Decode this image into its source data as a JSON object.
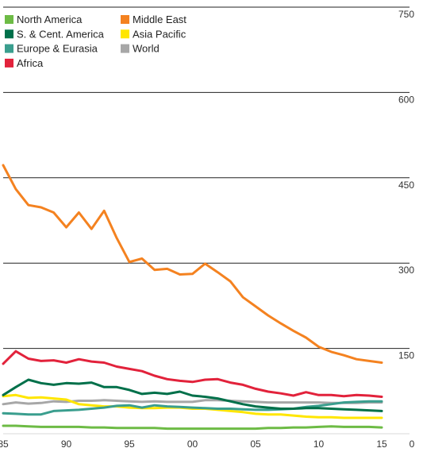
{
  "chart_data": {
    "type": "line",
    "title": "",
    "xlabel": "",
    "ylabel": "",
    "x": [
      1985,
      1986,
      1987,
      1988,
      1989,
      1990,
      1991,
      1992,
      1993,
      1994,
      1995,
      1996,
      1997,
      1998,
      1999,
      2000,
      2001,
      2002,
      2003,
      2004,
      2005,
      2006,
      2007,
      2008,
      2009,
      2010,
      2011,
      2012,
      2013,
      2014,
      2015
    ],
    "xtick_values": [
      1985,
      1990,
      1995,
      2000,
      2005,
      2010,
      2015
    ],
    "xtick_labels": [
      "85",
      "90",
      "95",
      "00",
      "05",
      "10",
      "15"
    ],
    "ytick_values": [
      0,
      150,
      300,
      450,
      600,
      750
    ],
    "ytick_labels": [
      "0",
      "150",
      "300",
      "450",
      "600",
      "750"
    ],
    "ylim": [
      0,
      750
    ],
    "xlim": [
      1985,
      2016
    ],
    "grid": "horizontal",
    "legend_position": "top-left",
    "series": [
      {
        "name": "North America",
        "color": "#6dbb45",
        "values": [
          14,
          14,
          13,
          12,
          12,
          12,
          12,
          11,
          11,
          10,
          10,
          10,
          10,
          9,
          9,
          9,
          9,
          9,
          9,
          9,
          9,
          10,
          10,
          11,
          11,
          12,
          13,
          12,
          12,
          12,
          11
        ]
      },
      {
        "name": "S. & Cent. America",
        "color": "#00704a",
        "values": [
          68,
          82,
          95,
          89,
          86,
          89,
          88,
          90,
          82,
          82,
          77,
          70,
          72,
          70,
          74,
          67,
          65,
          62,
          57,
          52,
          48,
          46,
          44,
          44,
          45,
          45,
          44,
          43,
          42,
          41,
          40
        ]
      },
      {
        "name": "Europe & Eurasia",
        "color": "#3a9e8e",
        "values": [
          36,
          35,
          34,
          34,
          40,
          41,
          42,
          44,
          46,
          49,
          50,
          46,
          50,
          48,
          47,
          46,
          45,
          44,
          44,
          43,
          42,
          42,
          43,
          44,
          47,
          49,
          52,
          55,
          56,
          57,
          57
        ]
      },
      {
        "name": "Africa",
        "color": "#e2223b",
        "values": [
          123,
          145,
          132,
          128,
          129,
          125,
          131,
          127,
          125,
          118,
          114,
          110,
          102,
          96,
          93,
          91,
          95,
          96,
          90,
          86,
          79,
          74,
          71,
          67,
          73,
          68,
          68,
          66,
          68,
          67,
          65
        ]
      },
      {
        "name": "Middle East",
        "color": "#f48220",
        "values": [
          472,
          430,
          402,
          398,
          389,
          363,
          389,
          360,
          392,
          344,
          302,
          308,
          288,
          290,
          280,
          281,
          299,
          284,
          268,
          240,
          224,
          208,
          194,
          181,
          169,
          153,
          144,
          138,
          131,
          128,
          125
        ]
      },
      {
        "name": "Asia Pacific",
        "color": "#ffe600",
        "values": [
          66,
          68,
          63,
          64,
          62,
          60,
          52,
          50,
          48,
          48,
          46,
          45,
          45,
          46,
          46,
          44,
          44,
          42,
          40,
          38,
          35,
          34,
          34,
          32,
          30,
          29,
          29,
          28,
          28,
          28,
          28
        ]
      },
      {
        "name": "World",
        "color": "#a7a7a7",
        "values": [
          52,
          55,
          53,
          54,
          57,
          56,
          58,
          58,
          59,
          58,
          57,
          56,
          57,
          56,
          56,
          56,
          59,
          59,
          58,
          57,
          56,
          55,
          55,
          55,
          55,
          55,
          54,
          54,
          54,
          55,
          55
        ]
      }
    ],
    "draw_order": [
      "World",
      "Asia Pacific",
      "Europe & Eurasia",
      "North America",
      "S. & Cent. America",
      "Africa",
      "Middle East"
    ]
  }
}
